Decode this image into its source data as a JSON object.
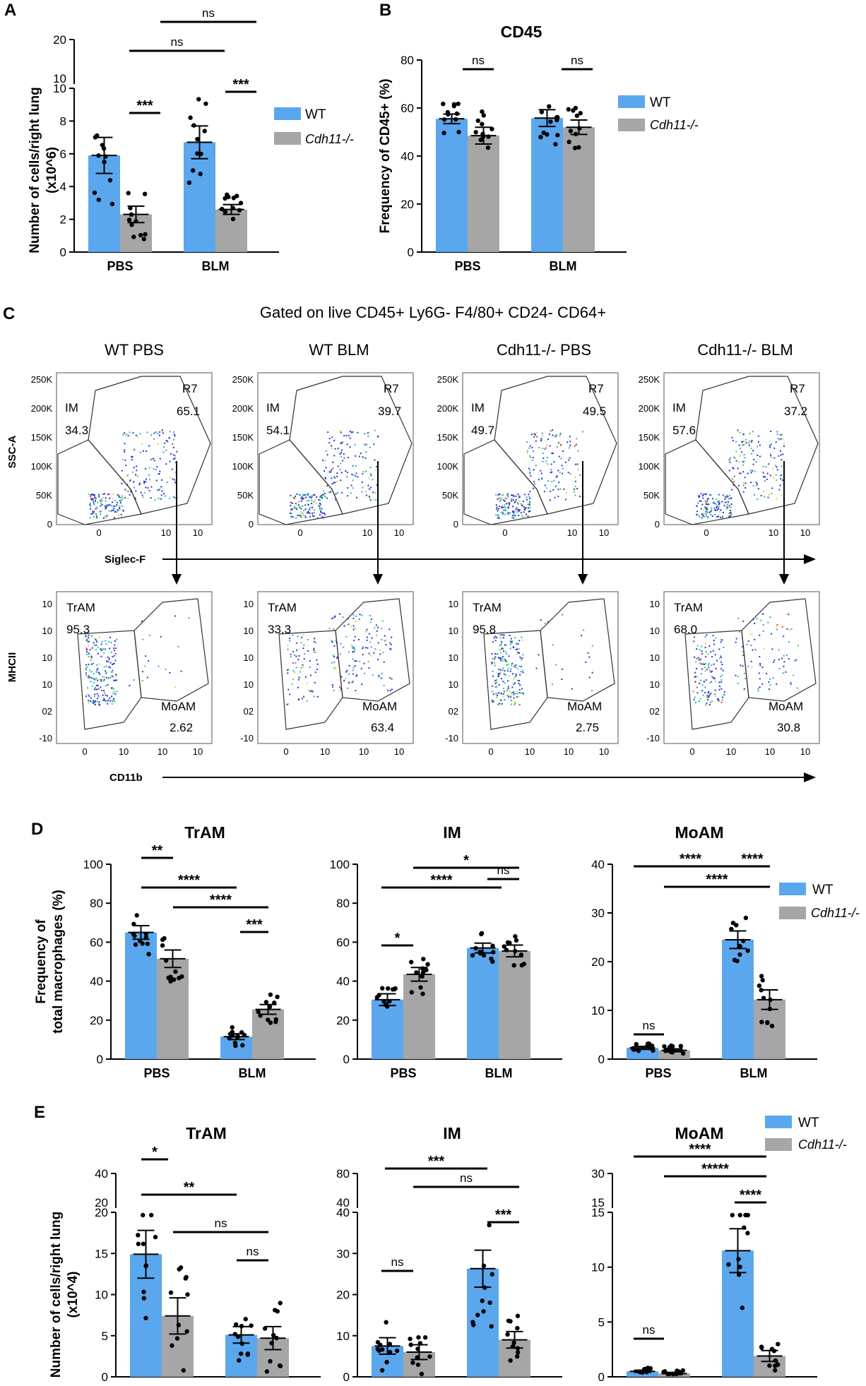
{
  "colors": {
    "wt": "#5aa7ee",
    "ko": "#a6a6a6"
  },
  "legend": {
    "wt": "WT",
    "ko": "Cdh11-/-"
  },
  "panels": {
    "a": "A",
    "b": "B",
    "c": "C",
    "d": "D",
    "e": "E"
  },
  "chart_data": [
    {
      "id": "A",
      "type": "bar",
      "title": "",
      "ylabel": "Number of cells/right lung (x10^6)",
      "categories": [
        "PBS",
        "BLM"
      ],
      "ylim": [
        0,
        10
      ],
      "break_ticks": [
        "10",
        "20"
      ],
      "yticks": [
        "0",
        "2",
        "4",
        "6",
        "8",
        "10"
      ],
      "series": [
        {
          "name": "WT",
          "values": [
            5.9,
            6.7
          ],
          "sem": [
            1.1,
            1.0
          ]
        },
        {
          "name": "Cdh11-/-",
          "values": [
            2.3,
            2.6
          ],
          "sem": [
            0.5,
            0.3
          ]
        }
      ],
      "significance": [
        "***",
        "***",
        "ns",
        "ns"
      ]
    },
    {
      "id": "B",
      "type": "bar",
      "title": "CD45",
      "ylabel": "Frequency of CD45+ (%)",
      "categories": [
        "PBS",
        "BLM"
      ],
      "ylim": [
        0,
        80
      ],
      "yticks": [
        "0",
        "20",
        "40",
        "60",
        "80"
      ],
      "series": [
        {
          "name": "WT",
          "values": [
            55.5,
            55.8
          ],
          "sem": [
            2.0,
            3.5
          ]
        },
        {
          "name": "Cdh11-/-",
          "values": [
            48.5,
            52.0
          ],
          "sem": [
            3.5,
            3.0
          ]
        }
      ],
      "significance": [
        "ns",
        "ns"
      ]
    },
    {
      "id": "D1",
      "type": "bar",
      "title": "TrAM",
      "ylabel": "Frequency of total macrophages (%)",
      "categories": [
        "PBS",
        "BLM"
      ],
      "ylim": [
        0,
        100
      ],
      "yticks": [
        "0",
        "20",
        "40",
        "60",
        "80",
        "100"
      ],
      "series": [
        {
          "name": "WT",
          "values": [
            65,
            11.5
          ],
          "sem": [
            3.5,
            1.5
          ]
        },
        {
          "name": "Cdh11-/-",
          "values": [
            51.5,
            25.5
          ],
          "sem": [
            4.5,
            2.5
          ]
        }
      ],
      "significance": [
        "**",
        "****",
        "****",
        "***"
      ]
    },
    {
      "id": "D2",
      "type": "bar",
      "title": "IM",
      "categories": [
        "PBS",
        "BLM"
      ],
      "ylim": [
        0,
        100
      ],
      "yticks": [
        "0",
        "20",
        "40",
        "60",
        "80",
        "100"
      ],
      "series": [
        {
          "name": "WT",
          "values": [
            30.5,
            57
          ],
          "sem": [
            3.0,
            2.5
          ]
        },
        {
          "name": "Cdh11-/-",
          "values": [
            43.5,
            55.5
          ],
          "sem": [
            3.5,
            3.0
          ]
        }
      ],
      "significance": [
        "*",
        "****",
        "*",
        "ns"
      ]
    },
    {
      "id": "D3",
      "type": "bar",
      "title": "MoAM",
      "categories": [
        "PBS",
        "BLM"
      ],
      "ylim": [
        0,
        40
      ],
      "yticks": [
        "0",
        "10",
        "20",
        "30",
        "40"
      ],
      "series": [
        {
          "name": "WT",
          "values": [
            2.3,
            24.5
          ],
          "sem": [
            0.3,
            1.8
          ]
        },
        {
          "name": "Cdh11-/-",
          "values": [
            1.8,
            12.2
          ],
          "sem": [
            0.3,
            2.0
          ]
        }
      ],
      "significance": [
        "****",
        "****",
        "****",
        "ns"
      ]
    },
    {
      "id": "E1",
      "type": "bar",
      "title": "TrAM",
      "ylabel": "Number of cells/right lung (x10^4)",
      "categories": [
        "PBS",
        "BLM"
      ],
      "ylim": [
        0,
        20
      ],
      "yticks": [
        "0",
        "5",
        "10",
        "15",
        "20"
      ],
      "break_ticks": [
        "20",
        "40"
      ],
      "series": [
        {
          "name": "WT",
          "values": [
            14.9,
            5.1
          ],
          "sem": [
            2.9,
            1.0
          ]
        },
        {
          "name": "Cdh11-/-",
          "values": [
            7.4,
            4.7
          ],
          "sem": [
            2.2,
            1.4
          ]
        }
      ],
      "significance": [
        "*",
        "**",
        "ns",
        "ns"
      ]
    },
    {
      "id": "E2",
      "type": "bar",
      "title": "IM",
      "categories": [
        "PBS",
        "BLM"
      ],
      "ylim": [
        0,
        40
      ],
      "yticks": [
        "0",
        "10",
        "20",
        "30",
        "40"
      ],
      "break_ticks": [
        "40",
        "80"
      ],
      "series": [
        {
          "name": "WT",
          "values": [
            7.5,
            26.3
          ],
          "sem": [
            2.0,
            4.5
          ]
        },
        {
          "name": "Cdh11-/-",
          "values": [
            6.0,
            9.0
          ],
          "sem": [
            1.8,
            2.0
          ]
        }
      ],
      "significance": [
        "ns",
        "***",
        "ns",
        "***"
      ]
    },
    {
      "id": "E3",
      "type": "bar",
      "title": "MoAM",
      "categories": [
        "PBS",
        "BLM"
      ],
      "ylim": [
        0,
        15
      ],
      "yticks": [
        "0",
        "5",
        "10",
        "15"
      ],
      "break_ticks": [
        "15",
        "30"
      ],
      "series": [
        {
          "name": "WT",
          "values": [
            0.5,
            11.5
          ],
          "sem": [
            0.1,
            2.0
          ]
        },
        {
          "name": "Cdh11-/-",
          "values": [
            0.3,
            1.9
          ],
          "sem": [
            0.1,
            0.5
          ]
        }
      ],
      "significance": [
        "ns",
        "****",
        "*****",
        "****"
      ]
    }
  ],
  "flow": {
    "gating_title": "Gated on live CD45+ Ly6G- F4/80+ CD24- CD64+",
    "conditions": [
      "WT PBS",
      "WT BLM",
      "Cdh11-/- PBS",
      "Cdh11-/- BLM"
    ],
    "top": {
      "ylabel": "SSC-A",
      "xlabel": "Siglec-F",
      "yticks": [
        "250K",
        "200K",
        "150K",
        "100K",
        "50K",
        "0"
      ],
      "xticks": [
        "0",
        "10",
        "10"
      ],
      "im_label": "IM",
      "r7_label": "R7",
      "im_values": [
        "34.3",
        "54.1",
        "49.7",
        "57.6"
      ],
      "r7_values": [
        "65.1",
        "39.7",
        "49.5",
        "37.2"
      ]
    },
    "bottom": {
      "ylabel": "MHCII",
      "xlabel": "CD11b",
      "yticks": [
        "10",
        "10",
        "10",
        "10",
        "02",
        "-10"
      ],
      "xticks": [
        "0",
        "10",
        "10",
        "10"
      ],
      "tram_label": "TrAM",
      "moam_label": "MoAM",
      "tram_values": [
        "95.3",
        "33.3",
        "95.8",
        "68.0"
      ],
      "moam_values": [
        "2.62",
        "63.4",
        "2.75",
        "30.8"
      ]
    }
  }
}
